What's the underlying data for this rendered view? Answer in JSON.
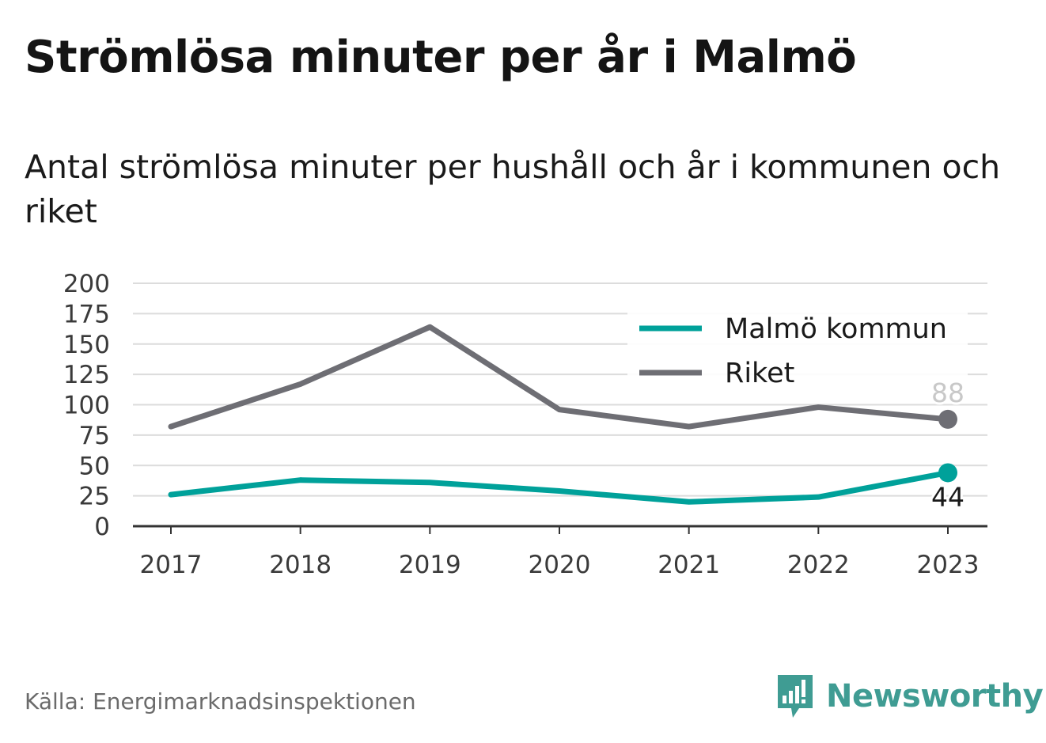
{
  "title": "Strömlösa minuter per år i Malmö",
  "subtitle": "Antal strömlösa minuter per hushåll och år i kommunen och riket",
  "source": "Källa: Energimarknadsinspektionen",
  "brand": {
    "name": "Newsworthy",
    "icon": "newsworthy-logo-icon",
    "color": "#3f9c93"
  },
  "chart_data": {
    "type": "line",
    "x": [
      "2017",
      "2018",
      "2019",
      "2020",
      "2021",
      "2022",
      "2023"
    ],
    "ylim": [
      0,
      200
    ],
    "yticks": [
      0,
      25,
      50,
      75,
      100,
      125,
      150,
      175,
      200
    ],
    "grid": true,
    "legend_position": "top-right",
    "series": [
      {
        "name": "Malmö kommun",
        "color": "#00a19a",
        "values": [
          26,
          38,
          36,
          29,
          20,
          24,
          44
        ],
        "end_label": "44"
      },
      {
        "name": "Riket",
        "color": "#6e6e74",
        "values": [
          82,
          117,
          164,
          96,
          82,
          98,
          88
        ],
        "end_label": "88"
      }
    ]
  }
}
